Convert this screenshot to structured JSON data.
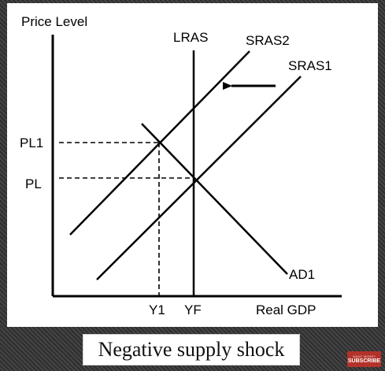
{
  "diagram": {
    "y_axis_label": "Price Level",
    "x_axis_label": "Real GDP",
    "curves": {
      "lras": "LRAS",
      "sras2": "SRAS2",
      "sras1": "SRAS1",
      "ad1": "AD1"
    },
    "price_ticks": {
      "pl1": "PL1",
      "pl": "PL"
    },
    "output_ticks": {
      "y1": "Y1",
      "yf": "YF"
    },
    "shift_arrow": "left",
    "line_color": "#000000"
  },
  "caption": "Negative supply shock",
  "badge": {
    "top": "WANT MORE?",
    "main": "SUBSCRIBE",
    "color": "#b3322a"
  }
}
